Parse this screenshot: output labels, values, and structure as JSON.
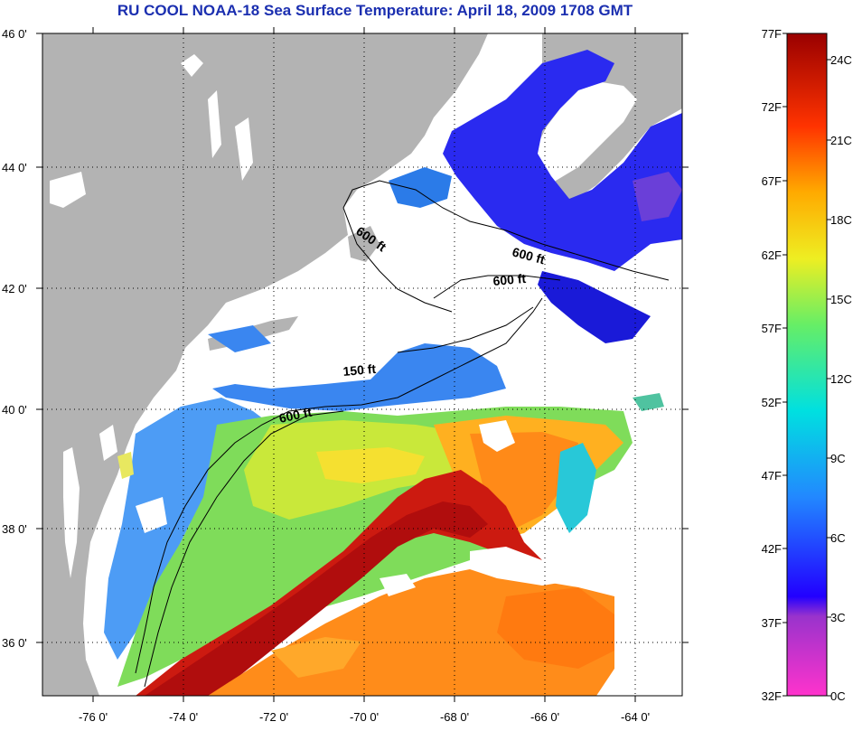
{
  "title": "RU COOL  NOAA-18  Sea Surface Temperature:  April 18, 2009 1708 GMT",
  "map": {
    "lat_labels": [
      "46 0'",
      "44 0'",
      "42 0'",
      "40 0'",
      "38 0'",
      "36 0'"
    ],
    "lon_labels": [
      "-76 0'",
      "-74 0'",
      "-72 0'",
      "-70 0'",
      "-68 0'",
      "-66 0'",
      "-64 0'"
    ],
    "contour_labels": [
      "600 ft",
      "600 ft",
      "600 ft",
      "150 ft",
      "600 ft"
    ]
  },
  "colorbar": {
    "fahrenheit_labels": [
      "77F",
      "72F",
      "67F",
      "62F",
      "57F",
      "52F",
      "47F",
      "42F",
      "37F",
      "32F"
    ],
    "celsius_labels": [
      "24C",
      "21C",
      "18C",
      "15C",
      "12C",
      "9C",
      "6C",
      "3C",
      "0C"
    ]
  },
  "colors": {
    "land": "#b3b3b3",
    "cloud": "#ffffff",
    "title": "#1b2fb0"
  }
}
